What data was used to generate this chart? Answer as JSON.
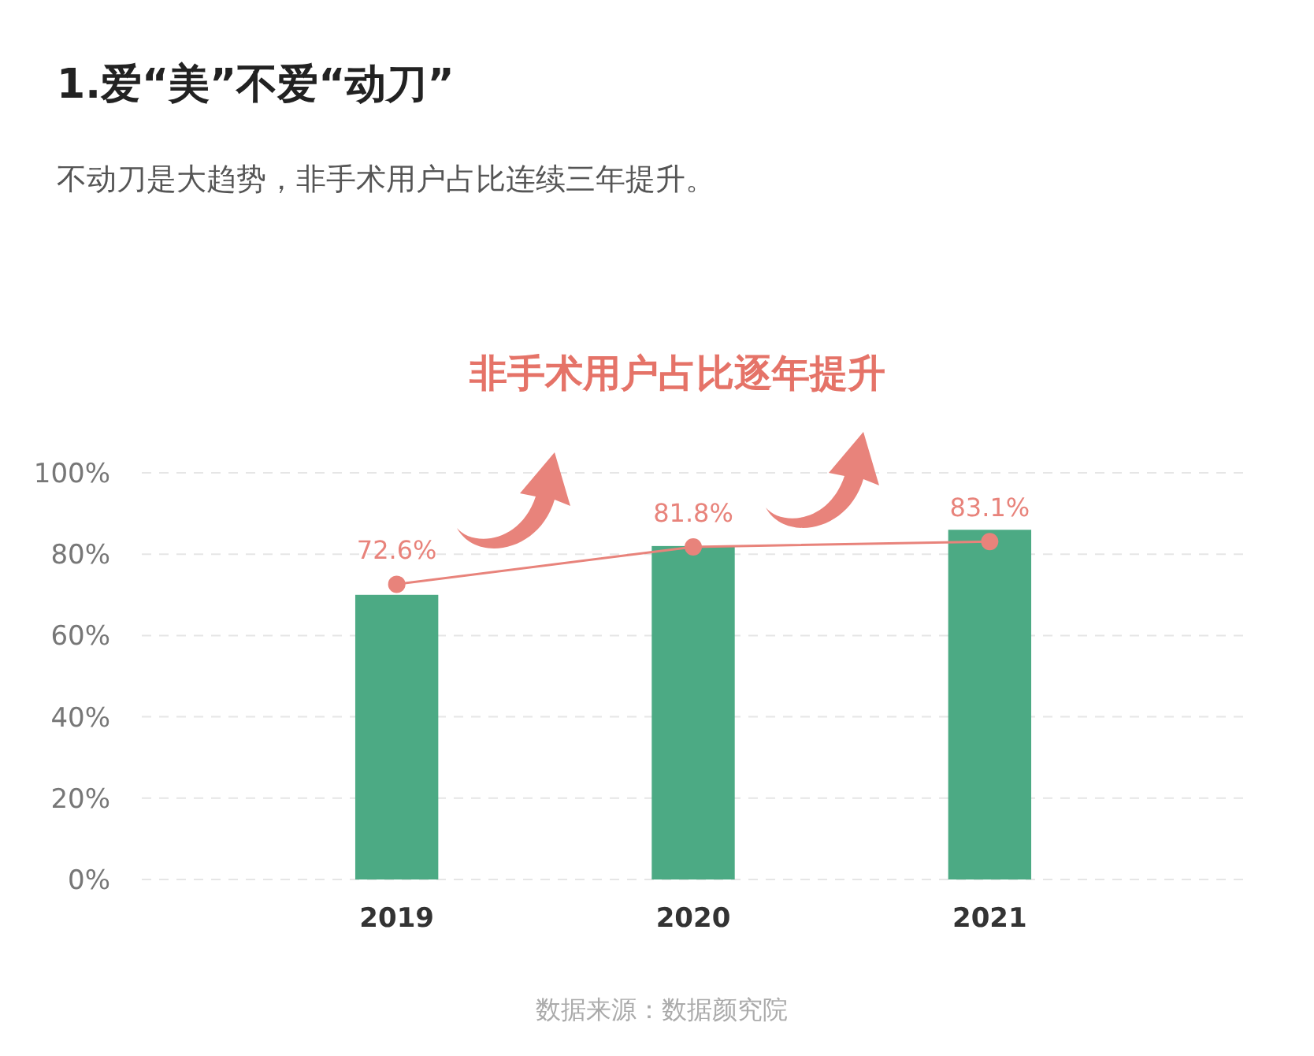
{
  "chart_data": {
    "type": "bar",
    "title": "1.爱“美”不爱“动刀”",
    "subtitle": "不动刀是大趋势，非手术用户占比连续三年提升。",
    "annotations": [
      "非手术用户占比逐年提升",
      "数据来源：数据颜究院"
    ],
    "categories": [
      "2019",
      "2020",
      "2021"
    ],
    "series": [
      {
        "color": "#4caa84",
        "values": [
          70,
          82,
          86
        ]
      },
      {
        "type": "line",
        "color": "#e8837b",
        "values": [
          72.6,
          81.8,
          83.1
        ],
        "value_labels": [
          "72.6%",
          "81.8%",
          "83.1%"
        ]
      }
    ],
    "ylim": [
      0,
      100
    ],
    "yticks": [
      {
        "value": 0,
        "label": "0%"
      },
      {
        "value": 20,
        "label": "20%"
      },
      {
        "value": 40,
        "label": "40%"
      },
      {
        "value": 60,
        "label": "60%"
      },
      {
        "value": 80,
        "label": "80%"
      },
      {
        "value": 100,
        "label": "100%"
      }
    ],
    "grid": "y",
    "marker": "circle"
  }
}
